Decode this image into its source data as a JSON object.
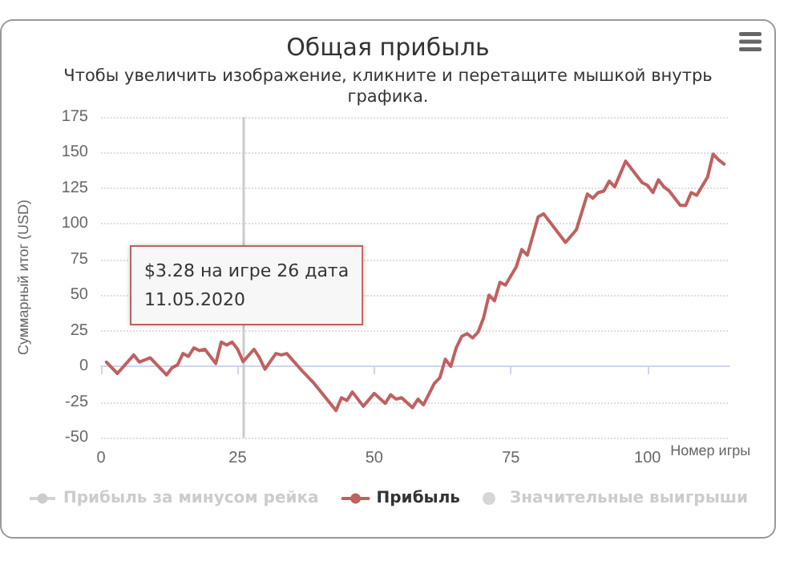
{
  "chart_data": {
    "type": "line",
    "title": "Общая прибыль",
    "subtitle": "Чтобы увеличить изображение, кликните и перетащите мышкой внутрь\nграфика.",
    "xlabel": "Номер игры",
    "ylabel": "Суммарный итог (USD)",
    "x": [
      1,
      3,
      6,
      7,
      9,
      12,
      13,
      14,
      15,
      16,
      17,
      18,
      19,
      21,
      22,
      23,
      24,
      25,
      26,
      28,
      29,
      30,
      32,
      33,
      34,
      37,
      39,
      43,
      44,
      45,
      46,
      48,
      50,
      52,
      53,
      54,
      55,
      57,
      58,
      59,
      61,
      62,
      63,
      64,
      65,
      66,
      67,
      68,
      69,
      70,
      71,
      72,
      73,
      74,
      76,
      77,
      78,
      80,
      81,
      85,
      87,
      89,
      90,
      91,
      92,
      93,
      94,
      96,
      99,
      100,
      101,
      102,
      103,
      104,
      106,
      107,
      108,
      109,
      111,
      112,
      113,
      114
    ],
    "series": [
      {
        "name": "Прибыль за минусом рейка",
        "color": "#cccccc",
        "values": [
          null,
          null,
          null,
          null,
          null,
          null,
          null,
          null,
          null,
          null,
          null,
          null,
          null,
          null,
          null,
          null,
          null,
          null,
          null,
          null,
          null,
          null,
          null,
          null,
          null,
          null,
          null,
          null,
          null,
          null,
          null,
          null,
          null,
          null,
          null,
          null,
          null,
          null,
          null,
          null,
          null,
          null,
          null,
          null,
          null,
          null,
          null,
          null,
          null,
          null,
          null,
          null,
          null,
          null,
          null,
          null,
          null,
          null,
          null,
          null,
          null,
          null,
          null,
          null,
          null,
          null,
          null,
          null,
          null,
          null,
          null,
          null,
          null,
          null,
          null,
          null,
          null,
          null,
          null,
          null,
          null,
          null
        ]
      },
      {
        "name": "Прибыль",
        "color": "#c06060",
        "values": [
          3,
          -5,
          8,
          3,
          6,
          -6,
          -1,
          1,
          9,
          7,
          13,
          11,
          12,
          2,
          17,
          15,
          17,
          12,
          3.28,
          12,
          6,
          -2,
          9,
          8,
          9,
          -4,
          -12,
          -31,
          -22,
          -24,
          -18,
          -28,
          -19,
          -26,
          -20,
          -23,
          -22,
          -29,
          -23,
          -27,
          -12,
          -8,
          5,
          0,
          13,
          21,
          23,
          20,
          24,
          34,
          50,
          46,
          59,
          57,
          70,
          82,
          78,
          105,
          107,
          87,
          96,
          121,
          118,
          122,
          123,
          130,
          126,
          144,
          129,
          127,
          122,
          131,
          126,
          123,
          113,
          113,
          122,
          120,
          133,
          149,
          145,
          142
        ]
      },
      {
        "name": "Значительные выигрыши",
        "type": "scatter",
        "color": "#cccccc",
        "values": [
          null,
          null,
          null,
          null,
          null,
          null,
          null,
          null,
          null,
          null,
          null,
          null,
          null,
          null,
          null,
          null,
          null,
          null,
          null,
          null,
          null,
          null,
          null,
          null,
          null,
          null,
          null,
          null,
          null,
          null,
          null,
          null,
          null,
          null,
          null,
          null,
          null,
          null,
          null,
          null,
          null,
          null,
          null,
          null,
          null,
          null,
          null,
          null,
          null,
          null,
          null,
          null,
          null,
          null,
          null,
          null,
          null,
          null,
          null,
          null,
          null,
          null,
          null,
          null,
          null,
          null,
          null,
          null,
          null,
          null,
          null,
          null,
          null,
          null,
          null,
          null,
          null,
          null,
          null,
          null,
          null,
          null
        ]
      }
    ],
    "xlim": [
      0,
      115
    ],
    "xticks": [
      0,
      25,
      50,
      75,
      100
    ],
    "ylim": [
      -50,
      175
    ],
    "yticks": [
      -50,
      -25,
      0,
      25,
      50,
      75,
      100,
      125,
      150,
      175
    ],
    "grid": "y",
    "legend": "bottom",
    "marker": "none",
    "line_style": "solid",
    "ref_lines": [
      {
        "axis": "x",
        "value": 26,
        "color": "#cccccc"
      }
    ],
    "annotations": [
      "$3.28 на игре 26 дата\n11.05.2020"
    ]
  }
}
